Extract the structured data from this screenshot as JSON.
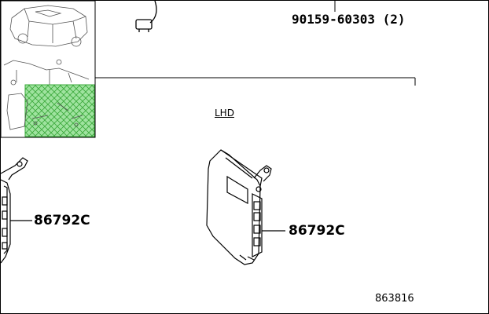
{
  "labels": {
    "fastener_part": "90159-60303",
    "fastener_qty": "(2)",
    "variant": "LHD",
    "part_left": "86792C",
    "part_right": "86792C",
    "illustration_no": "863816"
  },
  "colors": {
    "line": "#000000",
    "highlight_fill": "#9fe39f",
    "highlight_hatch": "#3aa83a"
  }
}
